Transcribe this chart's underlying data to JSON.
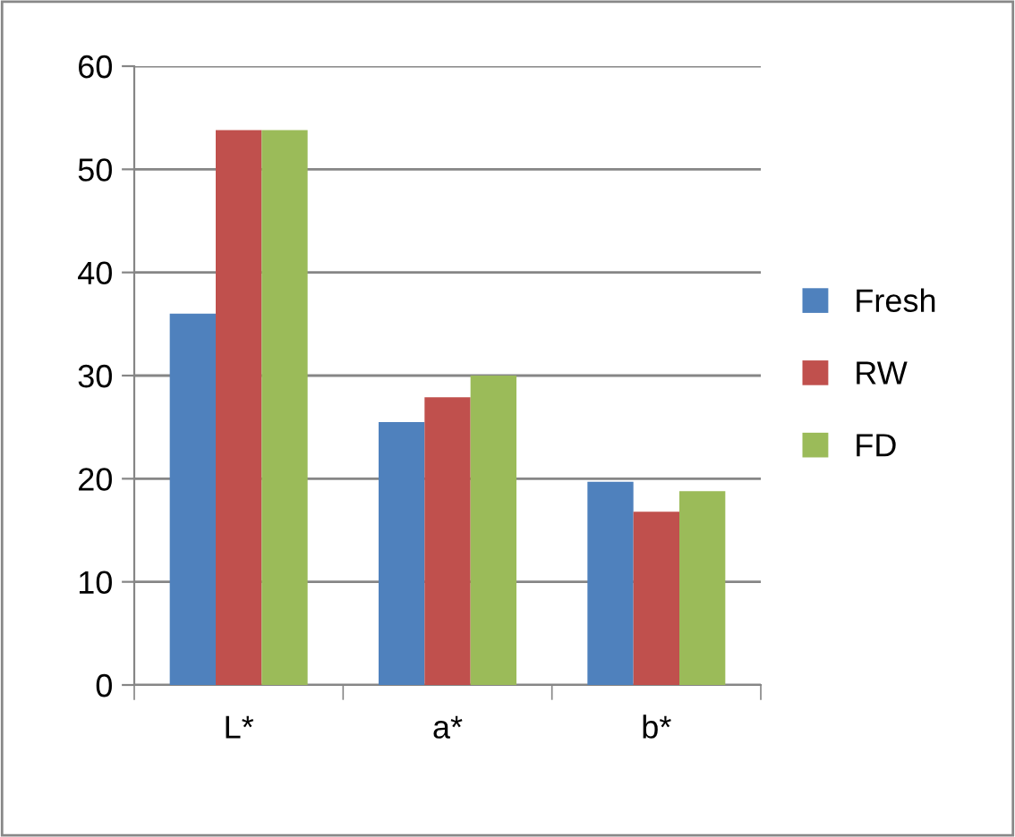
{
  "chart_data": {
    "type": "bar",
    "categories": [
      "L*",
      "a*",
      "b*"
    ],
    "series": [
      {
        "name": "Fresh",
        "color": "#4f81bd",
        "values": [
          36.0,
          25.5,
          19.7
        ]
      },
      {
        "name": "RW",
        "color": "#c0504d",
        "values": [
          53.8,
          27.9,
          16.8
        ]
      },
      {
        "name": "FD",
        "color": "#9bbb59",
        "values": [
          53.8,
          30.0,
          18.8
        ]
      }
    ],
    "ylim": [
      0,
      60
    ],
    "yticks": [
      0,
      10,
      20,
      30,
      40,
      50,
      60
    ],
    "grid": "y",
    "legend": "right"
  }
}
